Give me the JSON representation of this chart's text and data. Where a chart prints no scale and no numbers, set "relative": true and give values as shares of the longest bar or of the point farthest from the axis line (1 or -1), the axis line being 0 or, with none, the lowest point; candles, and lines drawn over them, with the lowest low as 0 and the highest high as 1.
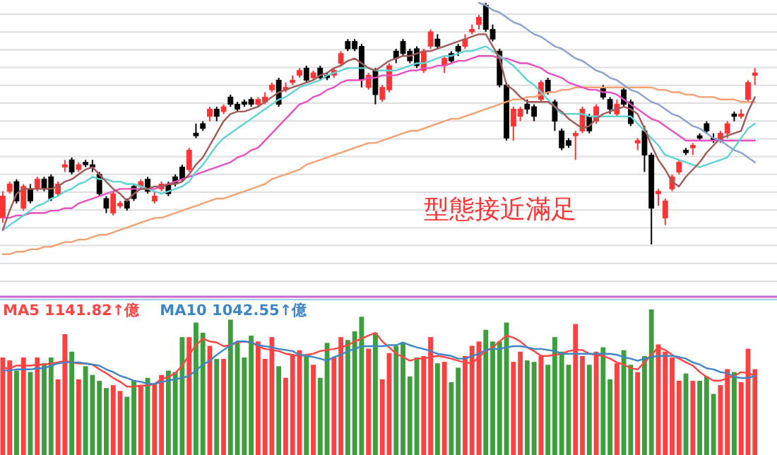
{
  "chart_data": [
    {
      "type": "candlestick",
      "relative": true,
      "grid": "y",
      "categories": [
        null,
        null,
        null,
        null,
        null,
        null,
        null,
        null,
        null,
        null,
        null,
        null,
        null,
        null,
        null,
        null,
        null,
        null,
        null,
        null,
        null,
        null,
        null,
        null,
        null,
        null,
        null,
        null,
        null,
        null,
        null,
        null,
        null,
        null,
        null,
        null,
        null,
        null,
        null,
        null,
        null,
        null,
        null,
        null,
        null,
        null,
        null,
        null,
        null,
        null,
        null,
        null,
        null,
        null,
        null,
        null,
        null,
        null,
        null,
        null,
        null,
        null,
        null,
        null,
        null,
        null,
        null,
        null,
        null,
        null,
        null,
        null,
        null,
        null,
        null,
        null,
        null,
        null,
        null,
        null,
        null,
        null,
        null,
        null,
        null,
        null,
        null,
        null,
        null,
        null,
        null,
        null,
        null,
        null,
        null,
        null,
        null,
        null,
        null,
        null,
        null,
        null,
        null,
        null,
        null,
        null,
        null,
        null,
        null,
        null
      ],
      "ohlc": [
        [
          0.11,
          0.22,
          0.09,
          0.2
        ],
        [
          0.22,
          0.26,
          0.21,
          0.25
        ],
        [
          0.26,
          0.27,
          0.17,
          0.18
        ],
        [
          0.15,
          0.25,
          0.14,
          0.24
        ],
        [
          0.23,
          0.25,
          0.17,
          0.18
        ],
        [
          0.23,
          0.28,
          0.22,
          0.27
        ],
        [
          0.27,
          0.28,
          0.22,
          0.23
        ],
        [
          0.28,
          0.29,
          0.18,
          0.19
        ],
        [
          0.21,
          0.26,
          0.2,
          0.25
        ],
        [
          0.32,
          0.35,
          0.3,
          0.33
        ],
        [
          0.35,
          0.36,
          0.29,
          0.3
        ],
        [
          0.31,
          0.34,
          0.3,
          0.33
        ],
        [
          0.34,
          0.35,
          0.32,
          0.33
        ],
        [
          0.33,
          0.35,
          0.3,
          0.32
        ],
        [
          0.29,
          0.3,
          0.2,
          0.21
        ],
        [
          0.19,
          0.2,
          0.13,
          0.15
        ],
        [
          0.13,
          0.22,
          0.12,
          0.21
        ],
        [
          0.16,
          0.18,
          0.15,
          0.17
        ],
        [
          0.18,
          0.19,
          0.14,
          0.15
        ],
        [
          0.24,
          0.25,
          0.18,
          0.19
        ],
        [
          0.24,
          0.27,
          0.23,
          0.26
        ],
        [
          0.27,
          0.28,
          0.21,
          0.22
        ],
        [
          0.18,
          0.22,
          0.17,
          0.2
        ],
        [
          0.23,
          0.26,
          0.22,
          0.25
        ],
        [
          0.25,
          0.26,
          0.2,
          0.21
        ],
        [
          0.28,
          0.29,
          0.24,
          0.25
        ],
        [
          0.32,
          0.33,
          0.26,
          0.27
        ],
        [
          0.31,
          0.4,
          0.3,
          0.39
        ],
        [
          0.46,
          0.5,
          0.44,
          0.45
        ],
        [
          0.5,
          0.51,
          0.47,
          0.48
        ],
        [
          0.53,
          0.57,
          0.51,
          0.56
        ],
        [
          0.56,
          0.57,
          0.51,
          0.53
        ],
        [
          0.55,
          0.58,
          0.54,
          0.57
        ],
        [
          0.61,
          0.62,
          0.57,
          0.58
        ],
        [
          0.58,
          0.59,
          0.55,
          0.56
        ],
        [
          0.59,
          0.6,
          0.57,
          0.58
        ],
        [
          0.6,
          0.61,
          0.57,
          0.58
        ],
        [
          0.58,
          0.61,
          0.57,
          0.6
        ],
        [
          0.59,
          0.63,
          0.58,
          0.61
        ],
        [
          0.64,
          0.67,
          0.63,
          0.66
        ],
        [
          0.68,
          0.69,
          0.57,
          0.58
        ],
        [
          0.64,
          0.67,
          0.63,
          0.65
        ],
        [
          0.67,
          0.7,
          0.66,
          0.68
        ],
        [
          0.7,
          0.73,
          0.69,
          0.72
        ],
        [
          0.73,
          0.74,
          0.67,
          0.68
        ],
        [
          0.69,
          0.72,
          0.68,
          0.71
        ],
        [
          0.73,
          0.74,
          0.68,
          0.69
        ],
        [
          0.7,
          0.71,
          0.68,
          0.69
        ],
        [
          0.7,
          0.73,
          0.69,
          0.72
        ],
        [
          0.75,
          0.8,
          0.74,
          0.79
        ],
        [
          0.84,
          0.85,
          0.8,
          0.81
        ],
        [
          0.84,
          0.85,
          0.8,
          0.81
        ],
        [
          0.82,
          0.83,
          0.65,
          0.68
        ],
        [
          0.65,
          0.71,
          0.64,
          0.7
        ],
        [
          0.72,
          0.73,
          0.58,
          0.62
        ],
        [
          0.6,
          0.66,
          0.59,
          0.65
        ],
        [
          0.64,
          0.75,
          0.63,
          0.74
        ],
        [
          0.8,
          0.81,
          0.75,
          0.77
        ],
        [
          0.84,
          0.85,
          0.78,
          0.79
        ],
        [
          0.8,
          0.81,
          0.75,
          0.76
        ],
        [
          0.81,
          0.82,
          0.73,
          0.74
        ],
        [
          0.72,
          0.81,
          0.71,
          0.8
        ],
        [
          0.82,
          0.89,
          0.81,
          0.88
        ],
        [
          0.85,
          0.87,
          0.81,
          0.82
        ],
        [
          0.74,
          0.78,
          0.71,
          0.77
        ],
        [
          0.79,
          0.8,
          0.75,
          0.76
        ],
        [
          0.82,
          0.83,
          0.78,
          0.8
        ],
        [
          0.82,
          0.87,
          0.81,
          0.85
        ],
        [
          0.88,
          0.91,
          0.87,
          0.89
        ],
        [
          0.91,
          0.95,
          0.89,
          0.94
        ],
        [
          0.99,
          1.0,
          0.88,
          0.89
        ],
        [
          0.89,
          0.91,
          0.84,
          0.85
        ],
        [
          0.8,
          0.81,
          0.65,
          0.66
        ],
        [
          0.66,
          0.67,
          0.43,
          0.44
        ],
        [
          0.49,
          0.57,
          0.43,
          0.56
        ],
        [
          0.53,
          0.57,
          0.51,
          0.56
        ],
        [
          0.58,
          0.6,
          0.54,
          0.56
        ],
        [
          0.57,
          0.58,
          0.51,
          0.53
        ],
        [
          0.6,
          0.68,
          0.59,
          0.67
        ],
        [
          0.68,
          0.69,
          0.62,
          0.63
        ],
        [
          0.59,
          0.6,
          0.47,
          0.51
        ],
        [
          0.47,
          0.48,
          0.39,
          0.4
        ],
        [
          0.43,
          0.44,
          0.4,
          0.41
        ],
        [
          0.45,
          0.47,
          0.35,
          0.46
        ],
        [
          0.47,
          0.57,
          0.46,
          0.56
        ],
        [
          0.53,
          0.54,
          0.46,
          0.47
        ],
        [
          0.51,
          0.58,
          0.5,
          0.57
        ],
        [
          0.65,
          0.66,
          0.6,
          0.61
        ],
        [
          0.6,
          0.61,
          0.54,
          0.56
        ],
        [
          0.54,
          0.6,
          0.53,
          0.58
        ],
        [
          0.64,
          0.65,
          0.57,
          0.58
        ],
        [
          0.59,
          0.6,
          0.49,
          0.5
        ],
        [
          0.42,
          0.44,
          0.39,
          0.43
        ],
        [
          0.47,
          0.49,
          0.3,
          0.37
        ],
        [
          0.37,
          0.38,
          0,
          0.15
        ],
        [
          0.21,
          0.23,
          0.16,
          0.22
        ],
        [
          0.11,
          0.19,
          0.08,
          0.18
        ],
        [
          0.23,
          0.29,
          0.22,
          0.28
        ],
        [
          0.3,
          0.35,
          0.29,
          0.34
        ],
        [
          0.39,
          0.4,
          0.37,
          0.38
        ],
        [
          0.4,
          0.42,
          0.37,
          0.41
        ],
        [
          0.45,
          0.46,
          0.43,
          0.44
        ],
        [
          0.5,
          0.51,
          0.46,
          0.47
        ],
        [
          0.44,
          0.46,
          0.42,
          0.43
        ],
        [
          0.43,
          0.47,
          0.42,
          0.46
        ],
        [
          0.46,
          0.51,
          0.44,
          0.5
        ],
        [
          0.54,
          0.55,
          0.51,
          0.53
        ],
        [
          0.53,
          0.56,
          0.52,
          0.54
        ],
        [
          0.6,
          0.68,
          0.59,
          0.67
        ],
        [
          0.7,
          0.73,
          0.66,
          0.71
        ]
      ],
      "colors": [
        "#ff3333",
        "#ff3333",
        "#000000",
        "#ff3333",
        "#000000",
        "#ff3333",
        "#000000",
        "#000000",
        "#ff3333",
        "#ff3333",
        "#000000",
        "#ff3333",
        "#000000",
        "#000000",
        "#000000",
        "#000000",
        "#ff3333",
        "#ff3333",
        "#000000",
        "#000000",
        "#ff3333",
        "#000000",
        "#ff3333",
        "#ff3333",
        "#000000",
        "#000000",
        "#000000",
        "#ff3333",
        "#000000",
        "#000000",
        "#ff3333",
        "#000000",
        "#ff3333",
        "#000000",
        "#000000",
        "#000000",
        "#000000",
        "#ff3333",
        "#ff3333",
        "#ff3333",
        "#000000",
        "#ff3333",
        "#ff3333",
        "#ff3333",
        "#000000",
        "#ff3333",
        "#000000",
        "#000000",
        "#ff3333",
        "#ff3333",
        "#000000",
        "#000000",
        "#000000",
        "#ff3333",
        "#000000",
        "#ff3333",
        "#ff3333",
        "#000000",
        "#000000",
        "#000000",
        "#000000",
        "#ff3333",
        "#ff3333",
        "#000000",
        "#ff3333",
        "#000000",
        "#000000",
        "#ff3333",
        "#ff3333",
        "#ff3333",
        "#000000",
        "#000000",
        "#000000",
        "#000000",
        "#ff3333",
        "#ff3333",
        "#000000",
        "#000000",
        "#ff3333",
        "#000000",
        "#000000",
        "#000000",
        "#000000",
        "#ff3333",
        "#ff3333",
        "#000000",
        "#ff3333",
        "#000000",
        "#000000",
        "#ff3333",
        "#000000",
        "#000000",
        "#ff3333",
        "#000000",
        "#000000",
        "#ff3333",
        "#ff3333",
        "#ff3333",
        "#ff3333",
        "#000000",
        "#ff3333",
        "#000000",
        "#000000",
        "#000000",
        "#ff3333",
        "#ff3333",
        "#000000",
        "#ff3333",
        "#ff3333",
        "#ff3333"
      ],
      "series": [
        {
          "type": "line",
          "color": "#f4a070",
          "values": [
            -0.04,
            -0.04,
            -0.03,
            -0.03,
            -0.02,
            -0.02,
            -0.01,
            -0.01,
            0.0,
            0.01,
            0.01,
            0.02,
            0.02,
            0.03,
            0.04,
            0.04,
            0.05,
            0.06,
            0.07,
            0.08,
            0.09,
            0.1,
            0.11,
            0.11,
            0.12,
            0.13,
            0.14,
            0.15,
            0.16,
            0.17,
            0.18,
            0.19,
            0.19,
            0.2,
            0.21,
            0.22,
            0.23,
            0.24,
            0.25,
            0.27,
            0.28,
            0.29,
            0.3,
            0.31,
            0.33,
            0.34,
            0.35,
            0.36,
            0.37,
            0.38,
            0.39,
            0.4,
            0.41,
            0.42,
            0.42,
            0.43,
            0.44,
            0.45,
            0.46,
            0.47,
            0.47,
            0.48,
            0.49,
            0.5,
            0.51,
            0.52,
            0.52,
            0.53,
            0.54,
            0.55,
            0.56,
            0.57,
            0.58,
            0.59,
            0.6,
            0.6,
            0.61,
            0.61,
            0.62,
            0.63,
            0.63,
            0.64,
            0.64,
            0.65,
            0.65,
            0.65,
            0.65,
            0.65,
            0.65,
            0.65,
            0.65,
            0.65,
            0.65,
            0.65,
            0.65,
            0.64,
            0.64,
            0.63,
            0.63,
            0.62,
            0.62,
            0.61,
            0.61,
            0.61,
            0.6,
            0.6,
            0.6,
            0.59,
            0.59,
            0.59
          ]
        },
        {
          "type": "line",
          "color": "#e84fc0",
          "values": [
            0.11,
            0.11,
            0.12,
            0.12,
            0.13,
            0.13,
            0.13,
            0.14,
            0.14,
            0.15,
            0.15,
            0.17,
            0.18,
            0.19,
            0.2,
            0.21,
            0.22,
            0.23,
            0.23,
            0.23,
            0.23,
            0.23,
            0.23,
            0.24,
            0.25,
            0.26,
            0.27,
            0.28,
            0.29,
            0.3,
            0.31,
            0.32,
            0.33,
            0.34,
            0.36,
            0.37,
            0.39,
            0.4,
            0.43,
            0.46,
            0.49,
            0.52,
            0.55,
            0.58,
            0.59,
            0.61,
            0.62,
            0.64,
            0.65,
            0.67,
            0.68,
            0.68,
            0.68,
            0.69,
            0.69,
            0.7,
            0.7,
            0.7,
            0.71,
            0.72,
            0.72,
            0.73,
            0.73,
            0.74,
            0.74,
            0.75,
            0.76,
            0.76,
            0.77,
            0.78,
            0.78,
            0.78,
            0.77,
            0.77,
            0.76,
            0.75,
            0.75,
            0.74,
            0.73,
            0.71,
            0.7,
            0.69,
            0.67,
            0.66,
            0.65,
            0.64,
            0.64,
            0.63,
            0.63,
            0.62,
            0.6,
            0.58,
            0.56,
            0.54,
            0.52,
            0.51,
            0.49,
            0.47,
            0.45,
            0.43,
            0.43,
            0.43,
            0.43,
            0.43,
            0.43,
            0.43,
            0.43,
            0.43,
            0.43,
            0.43
          ]
        },
        {
          "type": "line",
          "color": "#5fd3d3",
          "values": [
            0.06,
            0.08,
            0.1,
            0.12,
            0.14,
            0.16,
            0.17,
            0.19,
            0.2,
            0.22,
            0.23,
            0.25,
            0.26,
            0.28,
            0.27,
            0.27,
            0.26,
            0.26,
            0.25,
            0.25,
            0.24,
            0.23,
            0.22,
            0.21,
            0.22,
            0.23,
            0.24,
            0.26,
            0.3,
            0.33,
            0.37,
            0.41,
            0.44,
            0.46,
            0.48,
            0.5,
            0.52,
            0.54,
            0.56,
            0.58,
            0.6,
            0.61,
            0.63,
            0.65,
            0.66,
            0.67,
            0.68,
            0.7,
            0.71,
            0.72,
            0.73,
            0.73,
            0.73,
            0.73,
            0.72,
            0.72,
            0.72,
            0.72,
            0.73,
            0.74,
            0.75,
            0.75,
            0.76,
            0.77,
            0.78,
            0.78,
            0.79,
            0.8,
            0.8,
            0.81,
            0.82,
            0.8,
            0.78,
            0.76,
            0.74,
            0.71,
            0.68,
            0.66,
            0.63,
            0.6,
            0.57,
            0.54,
            0.54,
            0.54,
            0.54,
            0.53,
            0.53,
            0.53,
            0.53,
            0.53,
            0.53,
            0.53,
            0.5,
            0.47,
            0.44,
            0.41,
            0.37,
            0.36,
            0.35,
            0.34,
            0.33,
            0.32,
            0.33,
            0.34,
            0.35,
            0.36,
            0.4,
            0.44,
            0.48,
            0.5
          ]
        },
        {
          "type": "line",
          "color": "#a05a5a",
          "values": [
            0.06,
            0.14,
            0.21,
            0.23,
            0.23,
            0.23,
            0.23,
            0.23,
            0.24,
            0.26,
            0.27,
            0.29,
            0.31,
            0.32,
            0.29,
            0.26,
            0.23,
            0.21,
            0.18,
            0.21,
            0.23,
            0.23,
            0.24,
            0.24,
            0.25,
            0.25,
            0.26,
            0.29,
            0.33,
            0.36,
            0.41,
            0.46,
            0.51,
            0.54,
            0.55,
            0.55,
            0.56,
            0.57,
            0.59,
            0.61,
            0.63,
            0.64,
            0.65,
            0.66,
            0.67,
            0.68,
            0.7,
            0.71,
            0.73,
            0.74,
            0.76,
            0.77,
            0.75,
            0.73,
            0.72,
            0.74,
            0.76,
            0.77,
            0.78,
            0.78,
            0.79,
            0.8,
            0.8,
            0.81,
            0.82,
            0.83,
            0.84,
            0.85,
            0.86,
            0.87,
            0.87,
            0.82,
            0.77,
            0.66,
            0.64,
            0.61,
            0.59,
            0.59,
            0.59,
            0.59,
            0.57,
            0.55,
            0.52,
            0.5,
            0.48,
            0.49,
            0.52,
            0.54,
            0.55,
            0.56,
            0.57,
            0.56,
            0.54,
            0.48,
            0.41,
            0.35,
            0.31,
            0.26,
            0.24,
            0.28,
            0.31,
            0.34,
            0.38,
            0.41,
            0.44,
            0.45,
            0.46,
            0.47,
            0.55,
            0.61
          ]
        },
        {
          "type": "line",
          "color": "#8aa0d0",
          "values": [
            null,
            null,
            null,
            null,
            null,
            null,
            null,
            null,
            null,
            null,
            null,
            null,
            null,
            null,
            null,
            null,
            null,
            null,
            null,
            null,
            null,
            null,
            null,
            null,
            null,
            null,
            null,
            null,
            null,
            null,
            null,
            null,
            null,
            null,
            null,
            null,
            null,
            null,
            null,
            null,
            null,
            null,
            null,
            null,
            null,
            null,
            null,
            null,
            null,
            null,
            null,
            null,
            null,
            null,
            null,
            null,
            null,
            null,
            null,
            null,
            null,
            null,
            null,
            null,
            null,
            null,
            null,
            null,
            null,
            1.0,
            0.99,
            0.97,
            0.96,
            0.94,
            0.92,
            0.91,
            0.89,
            0.87,
            0.86,
            0.84,
            0.82,
            0.81,
            0.79,
            0.77,
            0.76,
            0.74,
            0.72,
            0.71,
            0.69,
            0.68,
            0.66,
            0.64,
            0.63,
            0.61,
            0.59,
            0.58,
            0.56,
            0.54,
            0.53,
            0.51,
            0.49,
            0.48,
            0.46,
            0.44,
            0.43,
            0.41,
            0.39,
            0.38,
            0.36,
            0.34
          ]
        }
      ],
      "annotations": [
        "型態接近滿足"
      ]
    },
    {
      "type": "bar",
      "relative": true,
      "categories": [
        null,
        null,
        null,
        null,
        null,
        null,
        null,
        null,
        null,
        null,
        null,
        null,
        null,
        null,
        null,
        null,
        null,
        null,
        null,
        null,
        null,
        null,
        null,
        null,
        null,
        null,
        null,
        null,
        null,
        null,
        null,
        null,
        null,
        null,
        null,
        null,
        null,
        null,
        null,
        null,
        null,
        null,
        null,
        null,
        null,
        null,
        null,
        null,
        null,
        null,
        null,
        null,
        null,
        null,
        null,
        null,
        null,
        null,
        null,
        null,
        null,
        null,
        null,
        null,
        null,
        null,
        null,
        null,
        null,
        null,
        null,
        null,
        null,
        null,
        null,
        null,
        null,
        null,
        null,
        null,
        null,
        null,
        null,
        null,
        null,
        null,
        null,
        null,
        null,
        null,
        null,
        null,
        null,
        null,
        null,
        null,
        null,
        null,
        null,
        null,
        null,
        null,
        null,
        null,
        null,
        null,
        null,
        null,
        null,
        null
      ],
      "values": [
        0.67,
        0.65,
        0.58,
        0.67,
        0.57,
        0.67,
        0.63,
        0.67,
        0.52,
        0.83,
        0.71,
        0.52,
        0.61,
        0.55,
        0.51,
        0.46,
        0.48,
        0.44,
        0.4,
        0.51,
        0.48,
        0.53,
        0.49,
        0.55,
        0.58,
        0.57,
        0.81,
        0.81,
        0.91,
        0.84,
        0.75,
        0.66,
        0.66,
        0.93,
        0.77,
        0.67,
        0.82,
        0.78,
        0.66,
        0.81,
        0.61,
        0.53,
        0.69,
        0.72,
        0.68,
        0.62,
        0.53,
        0.77,
        0.67,
        0.81,
        0.79,
        0.85,
        0.95,
        0.73,
        0.84,
        0.52,
        0.7,
        0.75,
        0.77,
        0.54,
        0.67,
        0.68,
        0.81,
        0.63,
        0.64,
        0.5,
        0.6,
        0.68,
        0.75,
        0.78,
        0.86,
        0.78,
        0.78,
        0.91,
        0.64,
        0.71,
        0.65,
        0.64,
        0.68,
        0.62,
        0.81,
        0.71,
        0.62,
        0.9,
        0.68,
        0.62,
        0.71,
        0.74,
        0.52,
        0.63,
        0.72,
        0.62,
        0.57,
        0.68,
        1.0,
        0.76,
        0.71,
        0.67,
        0.51,
        0.56,
        0.51,
        0.51,
        0.54,
        0.42,
        0.48,
        0.59,
        0.57,
        0.5,
        0.73,
        0.59
      ],
      "colors": [
        "#ff4040",
        "#ff4040",
        "#3e9e3e",
        "#ff4040",
        "#3e9e3e",
        "#ff4040",
        "#3e9e3e",
        "#3e9e3e",
        "#ff4040",
        "#ff4040",
        "#3e9e3e",
        "#ff4040",
        "#3e9e3e",
        "#3e9e3e",
        "#3e9e3e",
        "#3e9e3e",
        "#ff4040",
        "#ff4040",
        "#3e9e3e",
        "#3e9e3e",
        "#ff4040",
        "#3e9e3e",
        "#ff4040",
        "#ff4040",
        "#3e9e3e",
        "#3e9e3e",
        "#3e9e3e",
        "#ff4040",
        "#3e9e3e",
        "#3e9e3e",
        "#ff4040",
        "#3e9e3e",
        "#ff4040",
        "#3e9e3e",
        "#3e9e3e",
        "#3e9e3e",
        "#3e9e3e",
        "#ff4040",
        "#ff4040",
        "#ff4040",
        "#3e9e3e",
        "#ff4040",
        "#ff4040",
        "#ff4040",
        "#3e9e3e",
        "#ff4040",
        "#3e9e3e",
        "#3e9e3e",
        "#ff4040",
        "#ff4040",
        "#3e9e3e",
        "#3e9e3e",
        "#3e9e3e",
        "#ff4040",
        "#3e9e3e",
        "#ff4040",
        "#ff4040",
        "#3e9e3e",
        "#3e9e3e",
        "#3e9e3e",
        "#3e9e3e",
        "#ff4040",
        "#ff4040",
        "#3e9e3e",
        "#ff4040",
        "#3e9e3e",
        "#3e9e3e",
        "#ff4040",
        "#ff4040",
        "#ff4040",
        "#3e9e3e",
        "#3e9e3e",
        "#3e9e3e",
        "#3e9e3e",
        "#ff4040",
        "#ff4040",
        "#3e9e3e",
        "#3e9e3e",
        "#ff4040",
        "#3e9e3e",
        "#3e9e3e",
        "#3e9e3e",
        "#3e9e3e",
        "#ff4040",
        "#ff4040",
        "#3e9e3e",
        "#ff4040",
        "#3e9e3e",
        "#3e9e3e",
        "#ff4040",
        "#3e9e3e",
        "#3e9e3e",
        "#ff4040",
        "#3e9e3e",
        "#3e9e3e",
        "#ff4040",
        "#ff4040",
        "#ff4040",
        "#ff4040",
        "#3e9e3e",
        "#ff4040",
        "#3e9e3e",
        "#3e9e3e",
        "#3e9e3e",
        "#ff4040",
        "#ff4040",
        "#3e9e3e",
        "#ff4040",
        "#ff4040",
        "#ff4040"
      ],
      "grid": false
    },
    {
      "type": "line",
      "relative": true,
      "categories": [
        null,
        null,
        null,
        null,
        null,
        null,
        null,
        null,
        null,
        null,
        null,
        null,
        null,
        null,
        null,
        null,
        null,
        null,
        null,
        null,
        null,
        null,
        null,
        null,
        null,
        null,
        null,
        null,
        null,
        null,
        null,
        null,
        null,
        null,
        null,
        null,
        null,
        null,
        null,
        null,
        null,
        null,
        null,
        null,
        null,
        null,
        null,
        null,
        null,
        null,
        null,
        null,
        null,
        null,
        null,
        null,
        null,
        null,
        null,
        null,
        null,
        null,
        null,
        null,
        null,
        null,
        null,
        null,
        null,
        null,
        null,
        null,
        null,
        null,
        null,
        null,
        null,
        null,
        null,
        null,
        null,
        null,
        null,
        null,
        null,
        null,
        null,
        null,
        null,
        null,
        null,
        null,
        null,
        null,
        null,
        null,
        null,
        null,
        null,
        null,
        null,
        null,
        null,
        null,
        null,
        null,
        null,
        null,
        null,
        null
      ],
      "series": [
        {
          "name": "MA5 1141.82↑億",
          "color": "#ff4444",
          "values": [
            0.34,
            0.34,
            0.39,
            0.39,
            0.39,
            0.41,
            0.41,
            0.43,
            0.45,
            0.48,
            0.45,
            0.43,
            0.43,
            0.41,
            0.32,
            0.25,
            0.16,
            0.09,
            0,
            0,
            0.02,
            0.02,
            0.05,
            0.14,
            0.18,
            0.25,
            0.39,
            0.59,
            0.77,
            0.89,
            0.84,
            0.82,
            0.75,
            0.77,
            0.82,
            0.84,
            0.82,
            0.75,
            0.7,
            0.68,
            0.66,
            0.61,
            0.59,
            0.57,
            0.59,
            0.61,
            0.66,
            0.68,
            0.7,
            0.73,
            0.77,
            0.84,
            0.89,
            0.95,
            1.0,
            0.84,
            0.73,
            0.61,
            0.55,
            0.48,
            0.52,
            0.52,
            0.55,
            0.57,
            0.55,
            0.52,
            0.48,
            0.45,
            0.43,
            0.55,
            0.66,
            0.73,
            0.84,
            0.95,
            0.91,
            0.84,
            0.73,
            0.66,
            0.57,
            0.57,
            0.59,
            0.61,
            0.66,
            0.68,
            0.68,
            0.61,
            0.59,
            0.57,
            0.52,
            0.45,
            0.41,
            0.34,
            0.32,
            0.45,
            0.59,
            0.73,
            0.68,
            0.59,
            0.52,
            0.45,
            0.39,
            0.27,
            0.18,
            0.11,
            0.11,
            0.16,
            0.2,
            0.27,
            0.25,
            0.2
          ]
        },
        {
          "name": "MA10 1042.55↑億",
          "color": "#3d85c6",
          "values": [
            0.3,
            0.3,
            0.32,
            0.32,
            0.32,
            0.34,
            0.34,
            0.39,
            0.43,
            0.45,
            0.45,
            0.45,
            0.43,
            0.41,
            0.39,
            0.32,
            0.27,
            0.2,
            0.16,
            0.11,
            0.09,
            0.05,
            0.05,
            0.09,
            0.11,
            0.14,
            0.16,
            0.2,
            0.3,
            0.41,
            0.48,
            0.59,
            0.68,
            0.77,
            0.84,
            0.84,
            0.82,
            0.77,
            0.75,
            0.73,
            0.7,
            0.68,
            0.66,
            0.59,
            0.57,
            0.55,
            0.52,
            0.48,
            0.55,
            0.59,
            0.66,
            0.7,
            0.75,
            0.75,
            0.75,
            0.75,
            0.77,
            0.77,
            0.82,
            0.77,
            0.73,
            0.7,
            0.66,
            0.61,
            0.59,
            0.57,
            0.52,
            0.52,
            0.57,
            0.61,
            0.68,
            0.7,
            0.7,
            0.73,
            0.75,
            0.75,
            0.73,
            0.7,
            0.7,
            0.68,
            0.66,
            0.61,
            0.61,
            0.61,
            0.61,
            0.61,
            0.61,
            0.61,
            0.61,
            0.59,
            0.55,
            0.52,
            0.48,
            0.52,
            0.55,
            0.57,
            0.57,
            0.57,
            0.55,
            0.52,
            0.45,
            0.41,
            0.34,
            0.32,
            0.27,
            0.25,
            0.18,
            0.16,
            0.16,
            0.2
          ]
        }
      ]
    }
  ]
}
